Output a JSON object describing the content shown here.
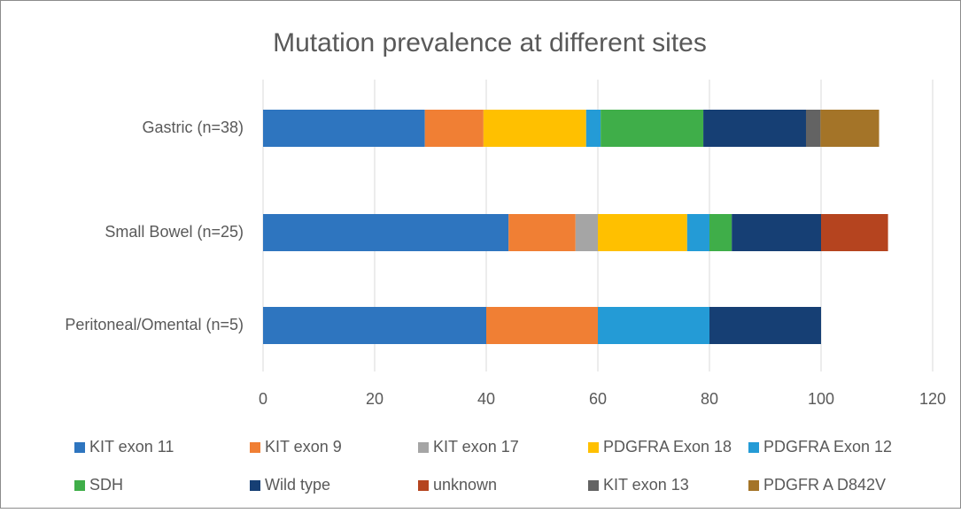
{
  "chart_data": {
    "type": "stacked_barh",
    "title": "Mutation prevalence at different sites",
    "categories": [
      "Gastric (n=38)",
      "Small Bowel (n=25)",
      "Peritoneal/Omental (n=5)"
    ],
    "series": [
      {
        "name": "KIT exon 11",
        "color": "#2e75bf",
        "values": [
          29,
          44,
          40
        ]
      },
      {
        "name": "KIT exon 9",
        "color": "#f07f34",
        "values": [
          10.5,
          12,
          20
        ]
      },
      {
        "name": "KIT exon 17",
        "color": "#a5a5a5",
        "values": [
          0,
          4,
          0
        ]
      },
      {
        "name": "PDGFRA Exon 18",
        "color": "#ffc000",
        "values": [
          18.4,
          16,
          0
        ]
      },
      {
        "name": "PDGFRA Exon 12",
        "color": "#249bd6",
        "values": [
          2.6,
          4,
          20
        ]
      },
      {
        "name": "SDH",
        "color": "#3fae49",
        "values": [
          18.4,
          4,
          0
        ]
      },
      {
        "name": "Wild type",
        "color": "#163f74",
        "values": [
          18.4,
          16,
          20
        ]
      },
      {
        "name": "unknown",
        "color": "#b5441f",
        "values": [
          0,
          12,
          0
        ]
      },
      {
        "name": "KIT exon 13",
        "color": "#636363",
        "values": [
          2.6,
          0,
          0
        ]
      },
      {
        "name": "PDGFR A D842V",
        "color": "#a47428",
        "values": [
          10.5,
          0,
          0
        ]
      }
    ],
    "xlim": [
      0,
      120
    ],
    "xticks": [
      0,
      20,
      40,
      60,
      80,
      100,
      120
    ],
    "grid": true
  }
}
